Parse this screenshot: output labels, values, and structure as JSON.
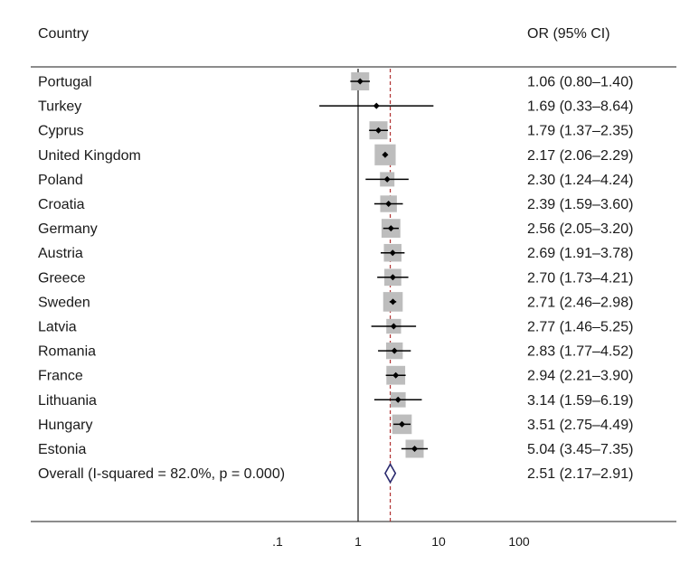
{
  "headers": {
    "country": "Country",
    "or": "OR (95% CI)"
  },
  "chart_data": {
    "type": "forest",
    "x_scale": "log10",
    "xlim": [
      0.1,
      100
    ],
    "x_ticks": [
      0.1,
      1,
      10,
      100
    ],
    "x_tick_labels": [
      ".1",
      "1",
      "10",
      "100"
    ],
    "null_line": 1,
    "overall_line": 2.51,
    "rows": [
      {
        "country": "Portugal",
        "or": 1.06,
        "lo": 0.8,
        "hi": 1.4,
        "label": "1.06 (0.80–1.40)",
        "weight": 0.75
      },
      {
        "country": "Turkey",
        "or": 1.69,
        "lo": 0.33,
        "hi": 8.64,
        "label": "1.69 (0.33–8.64)",
        "weight": 0.0
      },
      {
        "country": "Cyprus",
        "or": 1.79,
        "lo": 1.37,
        "hi": 2.35,
        "label": "1.79 (1.37–2.35)",
        "weight": 0.75
      },
      {
        "country": "United Kingdom",
        "or": 2.17,
        "lo": 2.06,
        "hi": 2.29,
        "label": "2.17 (2.06–2.29)",
        "weight": 0.95
      },
      {
        "country": "Poland",
        "or": 2.3,
        "lo": 1.24,
        "hi": 4.24,
        "label": "2.30 (1.24–4.24)",
        "weight": 0.5
      },
      {
        "country": "Croatia",
        "or": 2.39,
        "lo": 1.59,
        "hi": 3.6,
        "label": "2.39 (1.59–3.60)",
        "weight": 0.65
      },
      {
        "country": "Germany",
        "or": 2.56,
        "lo": 2.05,
        "hi": 3.2,
        "label": "2.56 (2.05–3.20)",
        "weight": 0.8
      },
      {
        "country": "Austria",
        "or": 2.69,
        "lo": 1.91,
        "hi": 3.78,
        "label": "2.69 (1.91–3.78)",
        "weight": 0.72
      },
      {
        "country": "Greece",
        "or": 2.7,
        "lo": 1.73,
        "hi": 4.21,
        "label": "2.70 (1.73–4.21)",
        "weight": 0.67
      },
      {
        "country": "Sweden",
        "or": 2.71,
        "lo": 2.46,
        "hi": 2.98,
        "label": "2.71 (2.46–2.98)",
        "weight": 0.85
      },
      {
        "country": "Latvia",
        "or": 2.77,
        "lo": 1.46,
        "hi": 5.25,
        "label": "2.77 (1.46–5.25)",
        "weight": 0.52
      },
      {
        "country": "Romania",
        "or": 2.83,
        "lo": 1.77,
        "hi": 4.52,
        "label": "2.83 (1.77–4.52)",
        "weight": 0.65
      },
      {
        "country": "France",
        "or": 2.94,
        "lo": 2.21,
        "hi": 3.9,
        "label": "2.94 (2.21–3.90)",
        "weight": 0.8
      },
      {
        "country": "Lithuania",
        "or": 3.14,
        "lo": 1.59,
        "hi": 6.19,
        "label": "3.14 (1.59–6.19)",
        "weight": 0.55
      },
      {
        "country": "Hungary",
        "or": 3.51,
        "lo": 2.75,
        "hi": 4.49,
        "label": "3.51 (2.75–4.49)",
        "weight": 0.85
      },
      {
        "country": "Estonia",
        "or": 5.04,
        "lo": 3.45,
        "hi": 7.35,
        "label": "5.04 (3.45–7.35)",
        "weight": 0.75
      }
    ],
    "overall": {
      "label_text": "Overall  (I-squared = 82.0%, p = 0.000)",
      "or": 2.51,
      "lo": 2.17,
      "hi": 2.91,
      "label": "2.51 (2.17–2.91)"
    },
    "colors": {
      "box": "#bdbdbd",
      "point": "#000000",
      "ci": "#000000",
      "overall_line": "#b03030",
      "diamond": "#2a2a6e"
    }
  }
}
